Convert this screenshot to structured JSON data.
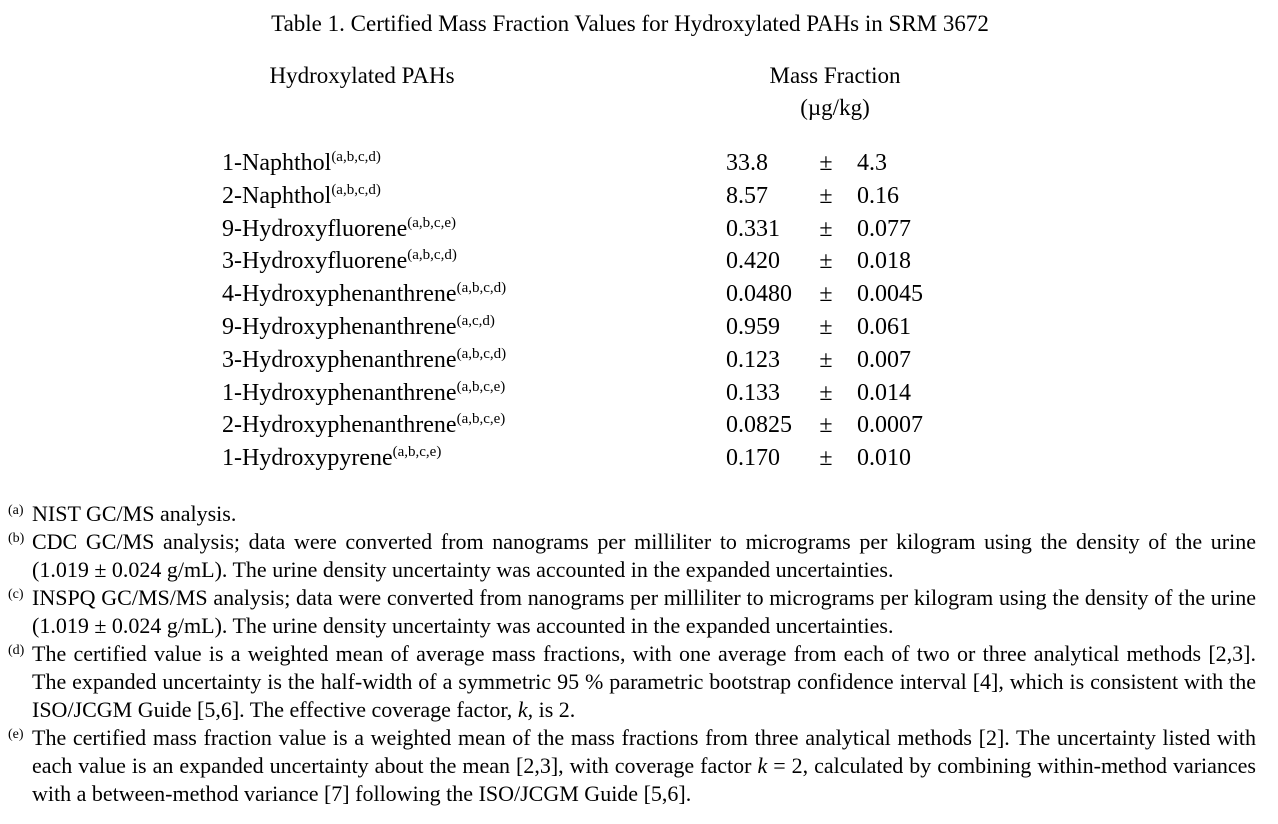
{
  "table": {
    "title": "Table 1.  Certified Mass Fraction Values for Hydroxylated PAHs in SRM 3672",
    "col_analyte": "Hydroxylated PAHs",
    "col_value": "Mass Fraction",
    "col_unit": "(µg/kg)",
    "pm": "±",
    "rows": [
      {
        "name": "1-Naphthol",
        "notes": "(a,b,c,d)",
        "value": "33.8",
        "uncertainty": "4.3"
      },
      {
        "name": "2-Naphthol",
        "notes": "(a,b,c,d)",
        "value": "8.57",
        "uncertainty": "0.16"
      },
      {
        "name": "9-Hydroxyfluorene",
        "notes": "(a,b,c,e)",
        "value": "0.331",
        "uncertainty": "0.077"
      },
      {
        "name": "3-Hydroxyfluorene",
        "notes": "(a,b,c,d)",
        "value": "0.420",
        "uncertainty": "0.018"
      },
      {
        "name": "4-Hydroxyphenanthrene",
        "notes": "(a,b,c,d)",
        "value": "0.0480",
        "uncertainty": "0.0045"
      },
      {
        "name": "9-Hydroxyphenanthrene",
        "notes": "(a,c,d)",
        "value": "0.959",
        "uncertainty": "0.061"
      },
      {
        "name": "3-Hydroxyphenanthrene",
        "notes": "(a,b,c,d)",
        "value": "0.123",
        "uncertainty": "0.007"
      },
      {
        "name": "1-Hydroxyphenanthrene",
        "notes": "(a,b,c,e)",
        "value": "0.133",
        "uncertainty": "0.014"
      },
      {
        "name": "2-Hydroxyphenanthrene",
        "notes": "(a,b,c,e)",
        "value": "0.0825",
        "uncertainty": "0.0007"
      },
      {
        "name": "1-Hydroxypyrene",
        "notes": "(a,b,c,e)",
        "value": "0.170",
        "uncertainty": "0.010"
      }
    ]
  },
  "footnotes": [
    {
      "mark": "(a)",
      "text": "NIST GC/MS analysis."
    },
    {
      "mark": "(b)",
      "text": "CDC GC/MS analysis; data were converted from nanograms per milliliter to micrograms per kilogram using the density of the urine (1.019 ± 0.024 g/mL).  The urine density uncertainty was accounted in the expanded uncertainties."
    },
    {
      "mark": "(c)",
      "text": "INSPQ GC/MS/MS analysis; data were converted from nanograms per milliliter to micrograms per kilogram using the density of the urine (1.019 ± 0.024 g/mL).  The urine density uncertainty was accounted in the expanded uncertainties."
    },
    {
      "mark": "(d)",
      "text_before": "The certified value is a weighted mean of average mass fractions, with one average from each of two or three analytical methods [2,3].  The expanded uncertainty is the half-width of a symmetric 95 % parametric bootstrap confidence interval [4], which is consistent with the ISO/JCGM Guide [5,6].  The effective coverage factor, ",
      "k": "k,",
      "text_after": " is 2."
    },
    {
      "mark": "(e)",
      "text_before": "The certified mass fraction value is a weighted mean of the mass fractions from three analytical methods [2].  The uncertainty listed with each value is an expanded uncertainty about the mean [2,3], with coverage factor ",
      "k": "k",
      "text_after": " = 2, calculated by combining within-method variances with a between-method variance [7] following the ISO/JCGM Guide [5,6]."
    }
  ]
}
